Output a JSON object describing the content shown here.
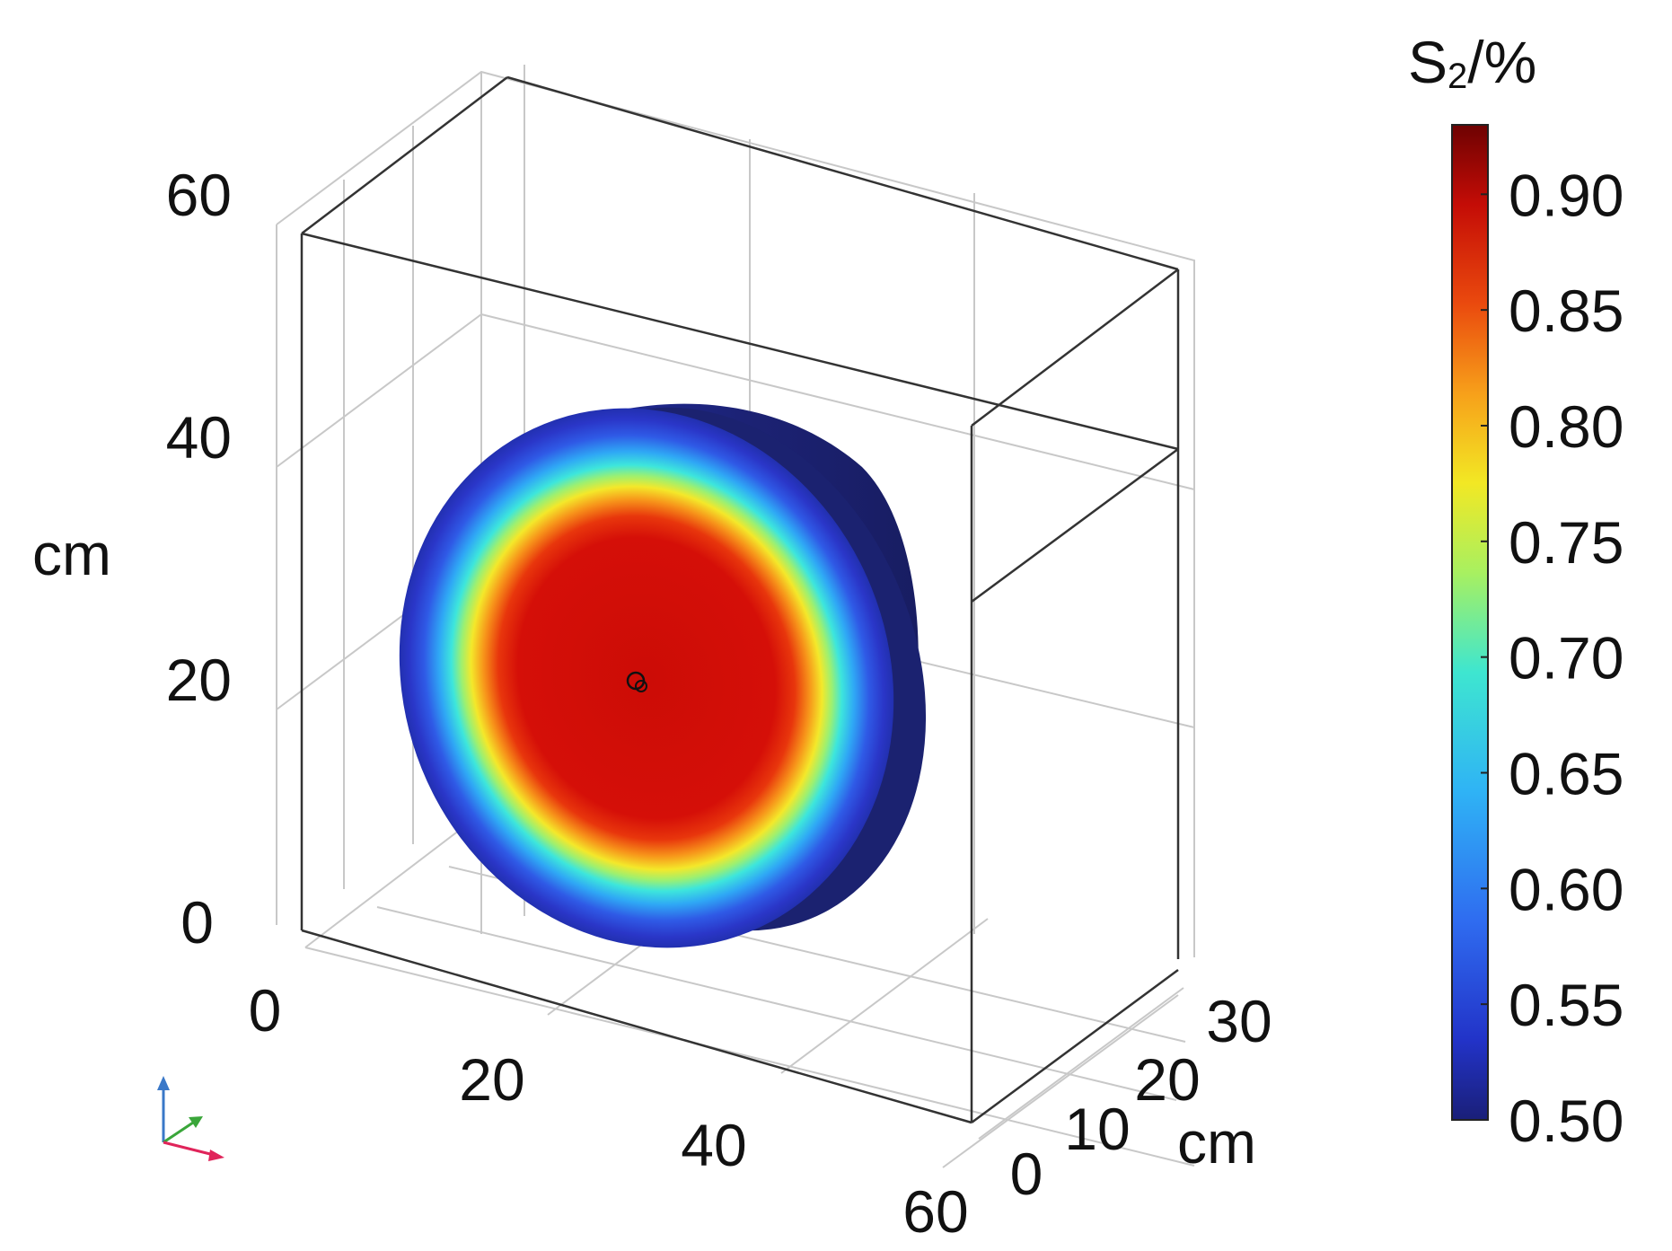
{
  "colorbar": {
    "title_main": "S",
    "title_sub": "2",
    "title_rest": "/%",
    "min": 0.5,
    "max": 0.93,
    "ticks": [
      "0.90",
      "0.85",
      "0.80",
      "0.75",
      "0.70",
      "0.65",
      "0.60",
      "0.55",
      "0.50"
    ],
    "tick_values": [
      0.9,
      0.85,
      0.8,
      0.75,
      0.7,
      0.65,
      0.6,
      0.55,
      0.5
    ],
    "colormap": [
      "#1a1f78",
      "#2e3fe0",
      "#2f8cf5",
      "#32d6f0",
      "#79ef98",
      "#e6f02c",
      "#f9a21a",
      "#e8350c",
      "#c80c06",
      "#7a0303"
    ]
  },
  "axes": {
    "z_ticks": [
      "60",
      "40",
      "20",
      "0"
    ],
    "z_unit": "cm",
    "x_ticks": [
      "0",
      "20",
      "40",
      "60"
    ],
    "y_ticks": [
      "0",
      "10",
      "20",
      "30"
    ],
    "y_unit": "cm"
  },
  "disc": {
    "center_value": 0.9,
    "edge_value": 0.5,
    "marker": "source-point"
  },
  "triad": {
    "x_color": "#e0245a",
    "y_color": "#3aa63a",
    "z_color": "#3a78c8"
  }
}
